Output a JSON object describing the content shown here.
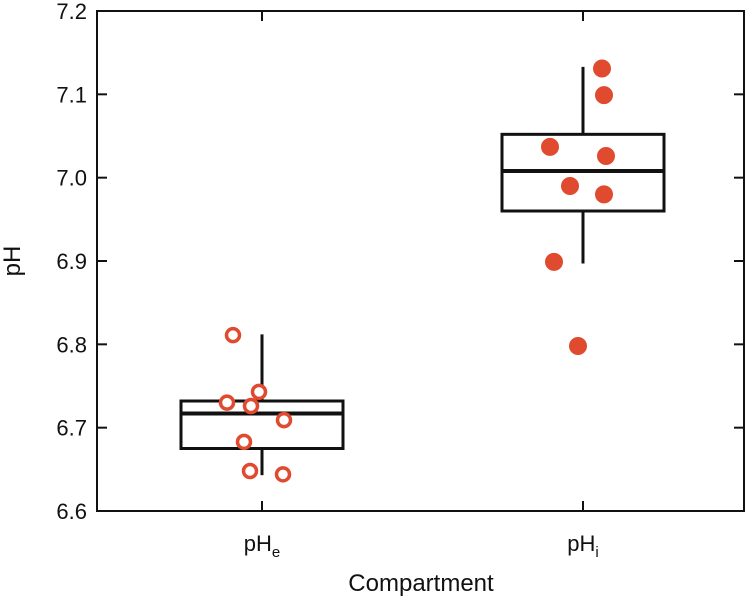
{
  "chart_data": {
    "type": "box",
    "title": "",
    "xlabel": "Compartment",
    "ylabel": "pH",
    "ylim": [
      6.6,
      7.2
    ],
    "yticks": [
      "6.6",
      "6.7",
      "6.8",
      "6.9",
      "7.0",
      "7.1",
      "7.2"
    ],
    "grid": false,
    "categories": [
      {
        "main": "pH",
        "sub": "e"
      },
      {
        "main": "pH",
        "sub": "i"
      }
    ],
    "series": [
      {
        "name": "pHe",
        "marker": "open-circle",
        "box": {
          "whisker_low": 6.643,
          "q1": 6.675,
          "median": 6.717,
          "q3": 6.732,
          "whisker_high": 6.812
        },
        "points": [
          6.811,
          6.743,
          6.73,
          6.726,
          6.709,
          6.683,
          6.648,
          6.644
        ]
      },
      {
        "name": "pHi",
        "marker": "filled-circle",
        "box": {
          "whisker_low": 6.897,
          "q1": 6.96,
          "median": 7.008,
          "q3": 7.052,
          "whisker_high": 7.133
        },
        "points": [
          7.131,
          7.099,
          7.037,
          7.026,
          6.99,
          6.98,
          6.899,
          6.798
        ]
      }
    ],
    "colors": {
      "marker": "#e04b2f",
      "axis": "#111111"
    }
  }
}
